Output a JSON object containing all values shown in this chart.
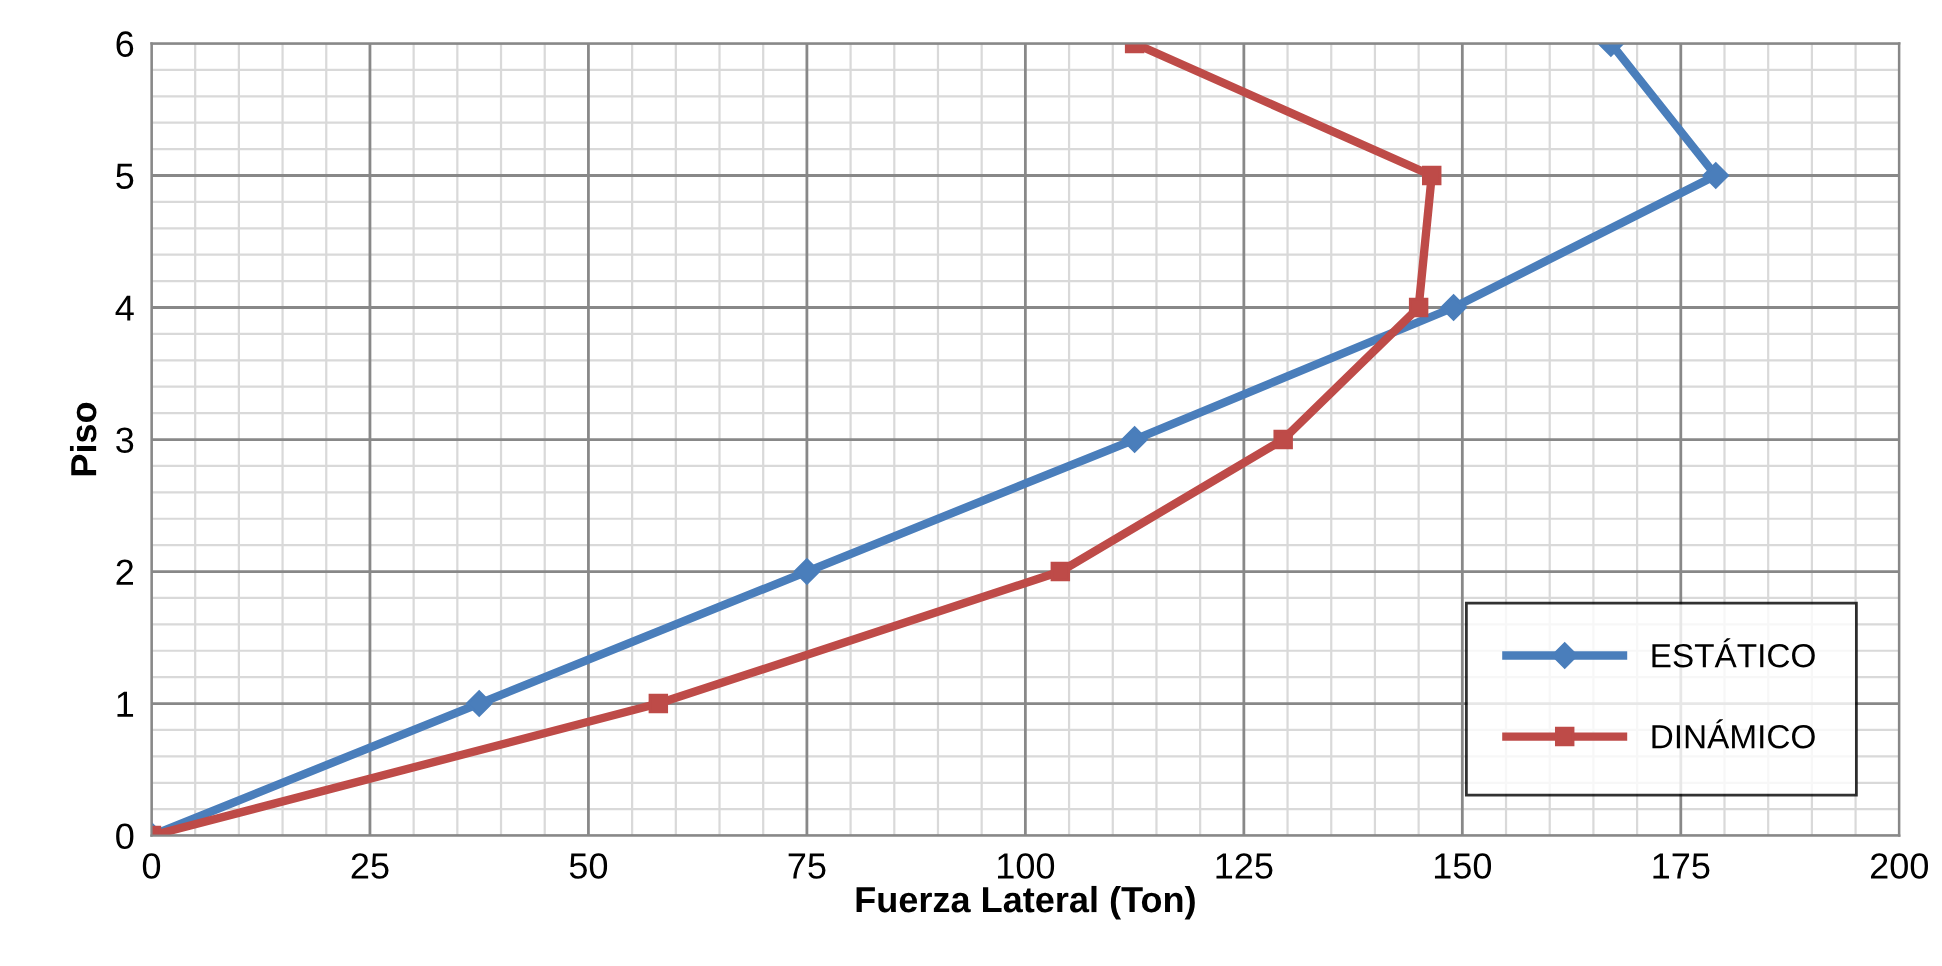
{
  "chart_data": {
    "type": "line",
    "xlabel": "Fuerza Lateral (Ton)",
    "ylabel": "Piso",
    "xlim": [
      0,
      200
    ],
    "xticks": [
      0,
      25,
      50,
      75,
      100,
      125,
      150,
      175,
      200
    ],
    "ylim": [
      0,
      6
    ],
    "yticks": [
      0,
      1,
      2,
      3,
      4,
      5,
      6
    ],
    "grid": true,
    "legend": "bottom right",
    "line_style": "solid",
    "series": [
      {
        "name": "ESTÁTICO",
        "color": "#4a7ebb",
        "marker": "diamond",
        "x": [
          0,
          37.5,
          75,
          112.5,
          149,
          179,
          167
        ],
        "values": [
          0,
          1,
          2,
          3,
          4,
          5,
          6
        ]
      },
      {
        "name": "DINÁMICO",
        "color": "#be4b48",
        "marker": "square",
        "x": [
          0,
          58,
          104,
          129.5,
          145,
          146.5,
          112.5
        ],
        "values": [
          0,
          1,
          2,
          3,
          4,
          5,
          6
        ]
      }
    ]
  }
}
